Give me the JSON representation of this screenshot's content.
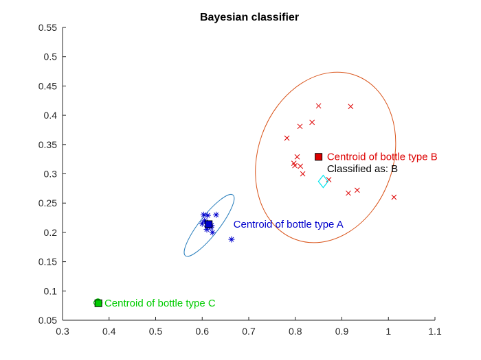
{
  "chart_data": {
    "type": "scatter",
    "title": "Bayesian classifier",
    "xlabel": "",
    "ylabel": "",
    "xlim": [
      0.3,
      1.1
    ],
    "ylim": [
      0.05,
      0.55
    ],
    "xticks": [
      0.3,
      0.4,
      0.5,
      0.6,
      0.7,
      0.8,
      0.9,
      1.0,
      1.1
    ],
    "xtick_labels": [
      "0.3",
      "0.4",
      "0.5",
      "0.6",
      "0.7",
      "0.8",
      "0.9",
      "1",
      "1.1"
    ],
    "yticks": [
      0.05,
      0.1,
      0.15,
      0.2,
      0.25,
      0.3,
      0.35,
      0.4,
      0.45,
      0.5,
      0.55
    ],
    "ytick_labels": [
      "0.05",
      "0.1",
      "0.15",
      "0.2",
      "0.25",
      "0.3",
      "0.35",
      "0.4",
      "0.45",
      "0.5",
      "0.55"
    ],
    "grid": false,
    "series": [
      {
        "marker": "asterisk",
        "color": "#0000cc",
        "points": [
          [
            0.603,
            0.23
          ],
          [
            0.612,
            0.229
          ],
          [
            0.63,
            0.23
          ],
          [
            0.6,
            0.215
          ],
          [
            0.608,
            0.218
          ],
          [
            0.615,
            0.215
          ],
          [
            0.611,
            0.21
          ],
          [
            0.619,
            0.209
          ],
          [
            0.62,
            0.212
          ],
          [
            0.622,
            0.2
          ],
          [
            0.61,
            0.205
          ],
          [
            0.605,
            0.22
          ],
          [
            0.663,
            0.188
          ]
        ]
      },
      {
        "marker": "x",
        "color": "#dd0000",
        "points": [
          [
            0.85,
            0.416
          ],
          [
            0.919,
            0.415
          ],
          [
            0.836,
            0.388
          ],
          [
            0.81,
            0.381
          ],
          [
            0.782,
            0.361
          ],
          [
            0.804,
            0.329
          ],
          [
            0.797,
            0.318
          ],
          [
            0.799,
            0.314
          ],
          [
            0.811,
            0.313
          ],
          [
            0.816,
            0.3
          ],
          [
            0.872,
            0.29
          ],
          [
            0.933,
            0.272
          ],
          [
            0.914,
            0.267
          ],
          [
            1.012,
            0.26
          ]
        ]
      },
      {
        "marker": "circle",
        "color": "#00cc00",
        "points": [
          [
            0.376,
            0.082
          ],
          [
            0.378,
            0.078
          ]
        ]
      }
    ],
    "ellipses": [
      {
        "cx": 0.615,
        "cy": 0.212,
        "rx": 0.083,
        "ry": 0.021,
        "angle_deg": -52,
        "color": "#2a7fbd"
      },
      {
        "cx": 0.865,
        "cy": 0.328,
        "rx": 0.188,
        "ry": 0.145,
        "angle_deg": -70,
        "color": "#d95319"
      },
      {
        "cx": 0.376,
        "cy": 0.08,
        "rx": 0.009,
        "ry": 0.006,
        "angle_deg": 0,
        "color": "#00cc00"
      }
    ],
    "centroids": [
      {
        "x": 0.614,
        "y": 0.214,
        "color": "#0000cc",
        "label_color": "#0000cc"
      },
      {
        "x": 0.85,
        "y": 0.329,
        "color": "#dd0000",
        "label_color": "#dd0000"
      },
      {
        "x": 0.377,
        "y": 0.079,
        "color": "#00cc00",
        "label_color": "#00cc00"
      }
    ],
    "test_point": {
      "x": 0.86,
      "y": 0.287,
      "color": "#00e5ee"
    },
    "annotations": [
      {
        "text": "Centroid of bottle type A",
        "x": 0.667,
        "y": 0.214,
        "color": "#0000cc"
      },
      {
        "text": "Centroid of bottle type B",
        "x": 0.868,
        "y": 0.329,
        "color": "#dd0000"
      },
      {
        "text": "Classified as: B",
        "x": 0.868,
        "y": 0.309,
        "color": "#000000"
      },
      {
        "text": "Centroid of bottle type C",
        "x": 0.39,
        "y": 0.079,
        "color": "#00cc00"
      }
    ]
  }
}
